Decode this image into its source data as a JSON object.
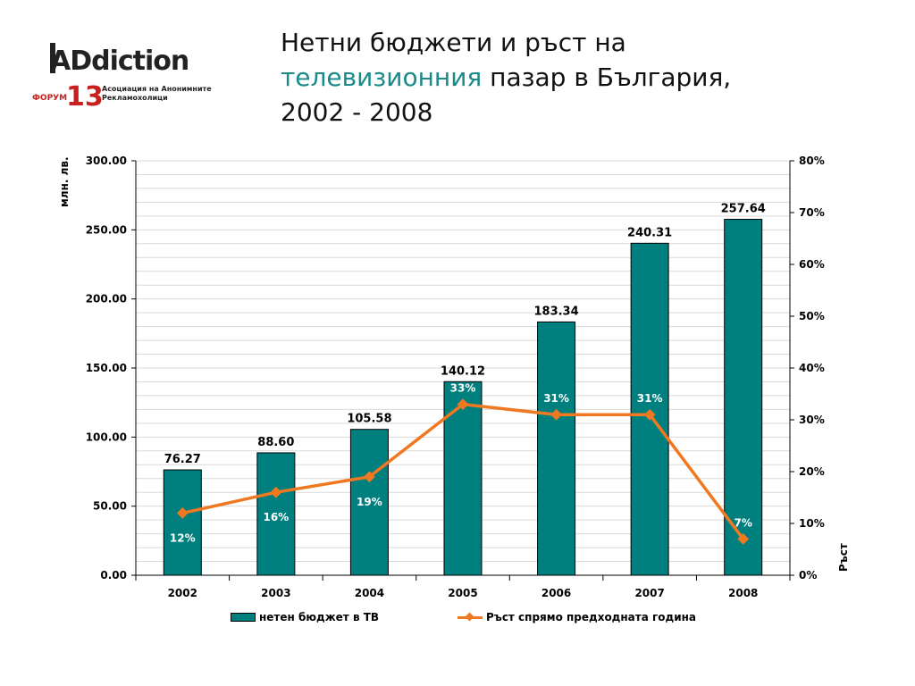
{
  "logo": {
    "brand": "ADdiction",
    "forum_word": "ФОРУМ",
    "forum_number": "13",
    "tagline_line1": "Асоциация на Анонимните",
    "tagline_line2": "Рекламохолици"
  },
  "title": {
    "line1": "Нетни бюджети и ръст на",
    "highlight": "телевизионния",
    "line2_rest": "пазар в България,",
    "line3": "2002 - 2008"
  },
  "colors": {
    "bar": "#007f7f",
    "line": "#f07820",
    "highlight": "#1a8a8a",
    "grid": "#d9d9d9"
  },
  "chart_data": {
    "type": "bar",
    "categories": [
      "2002",
      "2003",
      "2004",
      "2005",
      "2006",
      "2007",
      "2008"
    ],
    "series": [
      {
        "name": "нетен бюджет в ТВ",
        "type": "bar",
        "axis": "left",
        "values": [
          76.27,
          88.6,
          105.58,
          140.12,
          183.34,
          240.31,
          257.64
        ],
        "labels": [
          "76.27",
          "88.60",
          "105.58",
          "140.12",
          "183.34",
          "240.31",
          "257.64"
        ]
      },
      {
        "name": "Ръст спрямо предходната година",
        "type": "line",
        "axis": "right",
        "values": [
          12,
          16,
          19,
          33,
          31,
          31,
          7
        ],
        "labels": [
          "12%",
          "16%",
          "19%",
          "33%",
          "31%",
          "31%",
          "7%"
        ]
      }
    ],
    "ylabel": "млн. лв.",
    "y2label": "Ръст",
    "ylim": [
      0,
      300
    ],
    "y2lim": [
      0,
      80
    ],
    "yticks": [
      "0.00",
      "50.00",
      "100.00",
      "150.00",
      "200.00",
      "250.00",
      "300.00"
    ],
    "y2ticks": [
      "0%",
      "10%",
      "20%",
      "30%",
      "40%",
      "50%",
      "60%",
      "70%",
      "80%"
    ],
    "grid": true,
    "legend_position": "bottom"
  }
}
